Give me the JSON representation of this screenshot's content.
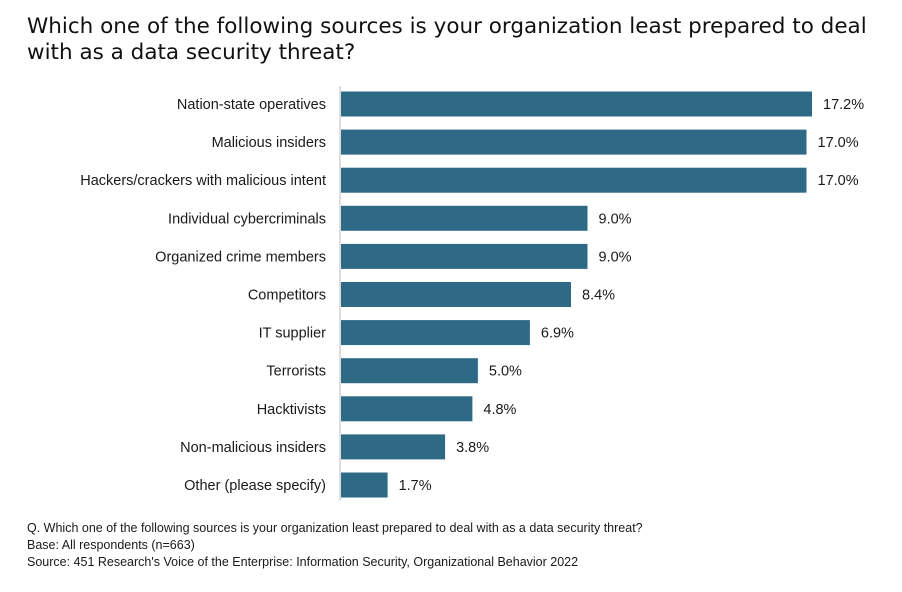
{
  "chart_data": {
    "type": "bar",
    "orientation": "horizontal",
    "title": "Which one of the following sources is your organization least prepared to deal with as a data security threat?",
    "categories": [
      "Nation-state operatives",
      "Malicious insiders",
      "Hackers/crackers with malicious intent",
      "Individual cybercriminals",
      "Organized crime members",
      "Competitors",
      "IT supplier",
      "Terrorists",
      "Hacktivists",
      "Non-malicious insiders",
      "Other (please specify)"
    ],
    "values": [
      17.2,
      17.0,
      17.0,
      9.0,
      9.0,
      8.4,
      6.9,
      5.0,
      4.8,
      3.8,
      1.7
    ],
    "value_labels": [
      "17.2%",
      "17.0%",
      "17.0%",
      "9.0%",
      "9.0%",
      "8.4%",
      "6.9%",
      "5.0%",
      "4.8%",
      "3.8%",
      "1.7%"
    ],
    "xlim": [
      0,
      17.2
    ],
    "grid": false,
    "bar_color": "#2e6a85"
  },
  "footnotes": {
    "question": "Q. Which one of the following sources is your organization least prepared to deal with as a data security threat?",
    "base": "Base: All respondents (n=663)",
    "source": "Source: 451 Research's Voice of the Enterprise: Information Security, Organizational Behavior 2022"
  }
}
